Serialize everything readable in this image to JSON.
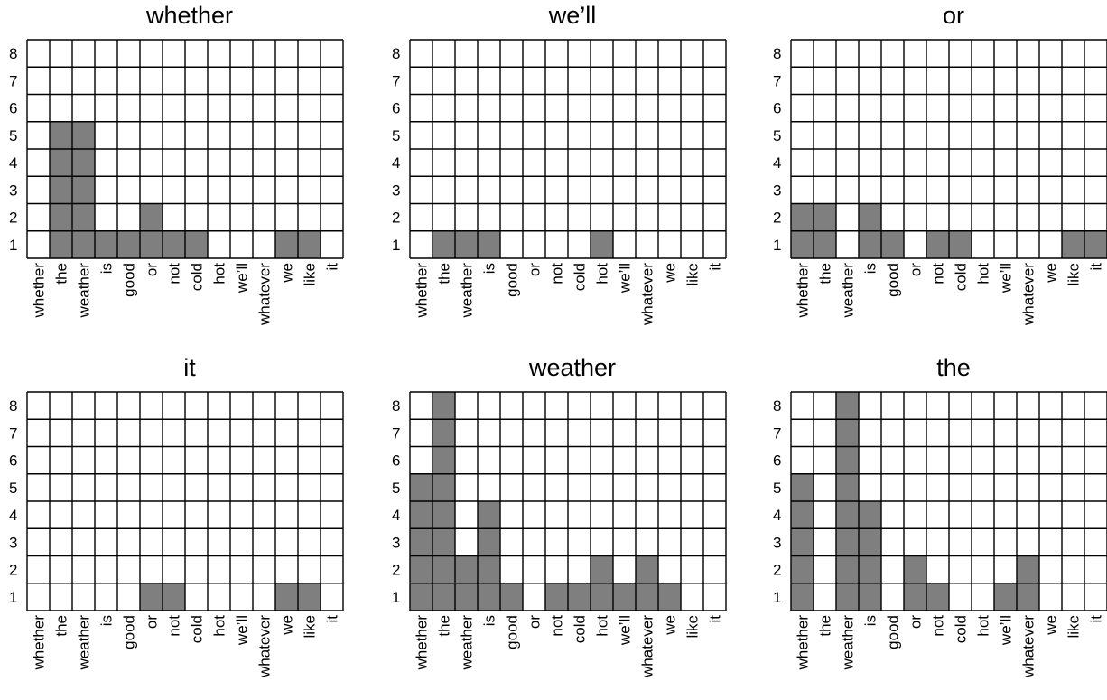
{
  "chart_data": [
    {
      "type": "heatmap",
      "title": "whether",
      "categories": [
        "whether",
        "the",
        "weather",
        "is",
        "good",
        "or",
        "not",
        "cold",
        "hot",
        "we’ll",
        "whatever",
        "we",
        "like",
        "it"
      ],
      "values": [
        0,
        5,
        5,
        1,
        1,
        2,
        1,
        1,
        0,
        0,
        0,
        1,
        1,
        0
      ],
      "yticks": [
        "1",
        "2",
        "3",
        "4",
        "5",
        "6",
        "7",
        "8"
      ],
      "ylim": [
        0,
        8
      ],
      "grid": true,
      "fill_color": "#7f7f7f"
    },
    {
      "type": "heatmap",
      "title": "we’ll",
      "categories": [
        "whether",
        "the",
        "weather",
        "is",
        "good",
        "or",
        "not",
        "cold",
        "hot",
        "we’ll",
        "whatever",
        "we",
        "like",
        "it"
      ],
      "values": [
        0,
        1,
        1,
        1,
        0,
        0,
        0,
        0,
        1,
        0,
        0,
        0,
        0,
        0
      ],
      "yticks": [
        "1",
        "2",
        "3",
        "4",
        "5",
        "6",
        "7",
        "8"
      ],
      "ylim": [
        0,
        8
      ],
      "grid": true,
      "fill_color": "#7f7f7f"
    },
    {
      "type": "heatmap",
      "title": "or",
      "categories": [
        "whether",
        "the",
        "weather",
        "is",
        "good",
        "or",
        "not",
        "cold",
        "hot",
        "we’ll",
        "whatever",
        "we",
        "like",
        "it"
      ],
      "values": [
        2,
        2,
        0,
        2,
        1,
        0,
        1,
        1,
        0,
        0,
        0,
        0,
        1,
        1
      ],
      "yticks": [
        "1",
        "2",
        "3",
        "4",
        "5",
        "6",
        "7",
        "8"
      ],
      "ylim": [
        0,
        8
      ],
      "grid": true,
      "fill_color": "#7f7f7f"
    },
    {
      "type": "heatmap",
      "title": "it",
      "categories": [
        "whether",
        "the",
        "weather",
        "is",
        "good",
        "or",
        "not",
        "cold",
        "hot",
        "we’ll",
        "whatever",
        "we",
        "like",
        "it"
      ],
      "values": [
        0,
        0,
        0,
        0,
        0,
        1,
        1,
        0,
        0,
        0,
        0,
        1,
        1,
        0
      ],
      "yticks": [
        "1",
        "2",
        "3",
        "4",
        "5",
        "6",
        "7",
        "8"
      ],
      "ylim": [
        0,
        8
      ],
      "grid": true,
      "fill_color": "#7f7f7f"
    },
    {
      "type": "heatmap",
      "title": "weather",
      "categories": [
        "whether",
        "the",
        "weather",
        "is",
        "good",
        "or",
        "not",
        "cold",
        "hot",
        "we’ll",
        "whatever",
        "we",
        "like",
        "it"
      ],
      "values": [
        5,
        8,
        2,
        4,
        1,
        0,
        1,
        1,
        2,
        1,
        2,
        1,
        0,
        0
      ],
      "yticks": [
        "1",
        "2",
        "3",
        "4",
        "5",
        "6",
        "7",
        "8"
      ],
      "ylim": [
        0,
        8
      ],
      "grid": true,
      "fill_color": "#7f7f7f"
    },
    {
      "type": "heatmap",
      "title": "the",
      "categories": [
        "whether",
        "the",
        "weather",
        "is",
        "good",
        "or",
        "not",
        "cold",
        "hot",
        "we’ll",
        "whatever",
        "we",
        "like",
        "it"
      ],
      "values": [
        5,
        0,
        8,
        4,
        0,
        2,
        1,
        0,
        0,
        1,
        2,
        0,
        0,
        0
      ],
      "yticks": [
        "1",
        "2",
        "3",
        "4",
        "5",
        "6",
        "7",
        "8"
      ],
      "ylim": [
        0,
        8
      ],
      "grid": true,
      "fill_color": "#7f7f7f"
    }
  ]
}
